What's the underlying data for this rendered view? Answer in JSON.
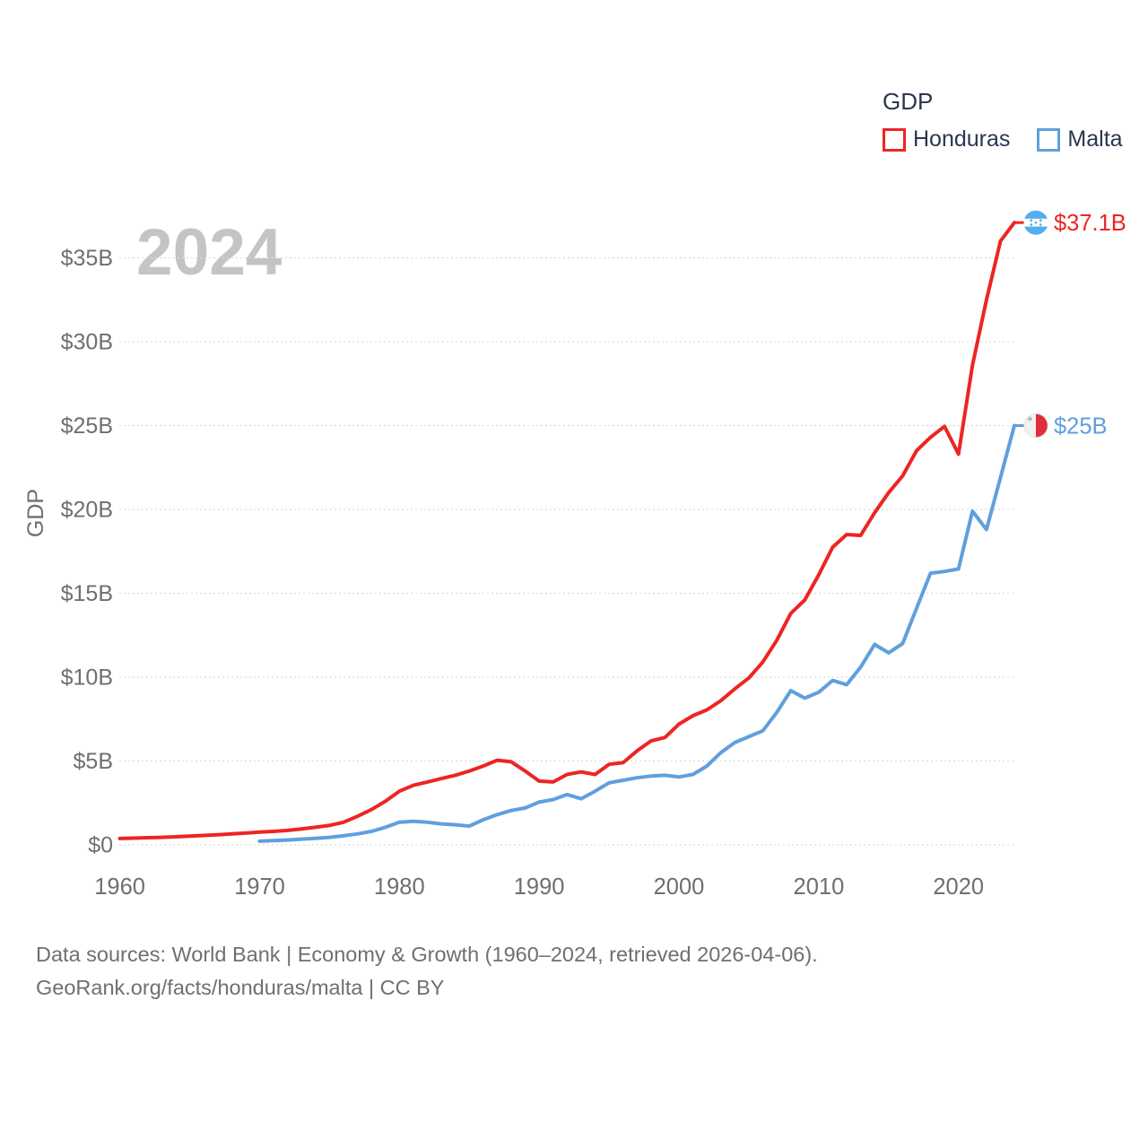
{
  "watermark": "2024",
  "legend": {
    "title": "GDP",
    "items": [
      {
        "label": "Honduras",
        "color": "#ee2424"
      },
      {
        "label": "Malta",
        "color": "#5f9fdd"
      }
    ]
  },
  "y_axis": {
    "title": "GDP",
    "ticks": [
      "$0",
      "$5B",
      "$10B",
      "$15B",
      "$20B",
      "$25B",
      "$30B",
      "$35B"
    ]
  },
  "x_axis": {
    "ticks": [
      "1960",
      "1970",
      "1980",
      "1990",
      "2000",
      "2010",
      "2020"
    ]
  },
  "end_labels": [
    {
      "series": "Honduras",
      "value": "$37.1B",
      "flag": "honduras-flag"
    },
    {
      "series": "Malta",
      "value": "$25B",
      "flag": "malta-flag"
    }
  ],
  "footer": {
    "line1": "Data sources: World Bank | Economy & Growth (1960–2024, retrieved 2026-04-06).",
    "line2": "GeoRank.org/facts/honduras/malta | CC BY"
  },
  "colors": {
    "honduras": "#ee2424",
    "malta": "#5f9fdd",
    "text_dark": "#29374f",
    "text_gray": "#6f6f6f",
    "watermark": "#c4c4c4",
    "grid": "#dcdcdc",
    "flag_blue": "#55acee",
    "flag_red": "#df2e3b",
    "flag_cross_gray": "#aab4bc"
  },
  "chart_data": {
    "type": "line",
    "title": "GDP",
    "ylabel": "GDP",
    "units": "billions of current US$",
    "xlim": [
      1960,
      2024
    ],
    "ylim": [
      0,
      37.5
    ],
    "x_tick_values": [
      1960,
      1970,
      1980,
      1990,
      2000,
      2010,
      2020
    ],
    "y_tick_values": [
      0,
      5,
      10,
      15,
      20,
      25,
      30,
      35
    ],
    "grid": true,
    "legend_position": "top-right",
    "series": [
      {
        "name": "Honduras",
        "color": "#ee2424",
        "end_label": "$37.1B",
        "start_year": 1960,
        "values": [
          0.38,
          0.4,
          0.43,
          0.45,
          0.48,
          0.52,
          0.56,
          0.6,
          0.65,
          0.7,
          0.76,
          0.8,
          0.86,
          0.95,
          1.05,
          1.16,
          1.35,
          1.7,
          2.1,
          2.6,
          3.2,
          3.55,
          3.75,
          3.95,
          4.15,
          4.4,
          4.7,
          5.05,
          4.95,
          4.4,
          3.8,
          3.75,
          4.2,
          4.35,
          4.2,
          4.8,
          4.9,
          5.6,
          6.2,
          6.4,
          7.2,
          7.7,
          8.05,
          8.6,
          9.3,
          9.95,
          10.9,
          12.2,
          13.8,
          14.6,
          16.1,
          17.75,
          18.5,
          18.45,
          19.8,
          21.0,
          22.0,
          23.5,
          24.3,
          24.95,
          23.3,
          28.6,
          32.5,
          36.0,
          37.1
        ]
      },
      {
        "name": "Malta",
        "color": "#5f9fdd",
        "end_label": "$25B",
        "start_year": 1970,
        "values": [
          0.22,
          0.25,
          0.29,
          0.34,
          0.39,
          0.45,
          0.54,
          0.65,
          0.8,
          1.05,
          1.35,
          1.4,
          1.35,
          1.25,
          1.2,
          1.12,
          1.5,
          1.8,
          2.05,
          2.2,
          2.55,
          2.7,
          3.0,
          2.75,
          3.2,
          3.7,
          3.85,
          4.0,
          4.1,
          4.15,
          4.05,
          4.2,
          4.7,
          5.5,
          6.1,
          6.45,
          6.8,
          7.9,
          9.2,
          8.75,
          9.1,
          9.8,
          9.55,
          10.6,
          11.95,
          11.45,
          12.0,
          14.1,
          16.2,
          16.3,
          16.45,
          19.9,
          18.8,
          21.9,
          25.0
        ]
      }
    ]
  }
}
